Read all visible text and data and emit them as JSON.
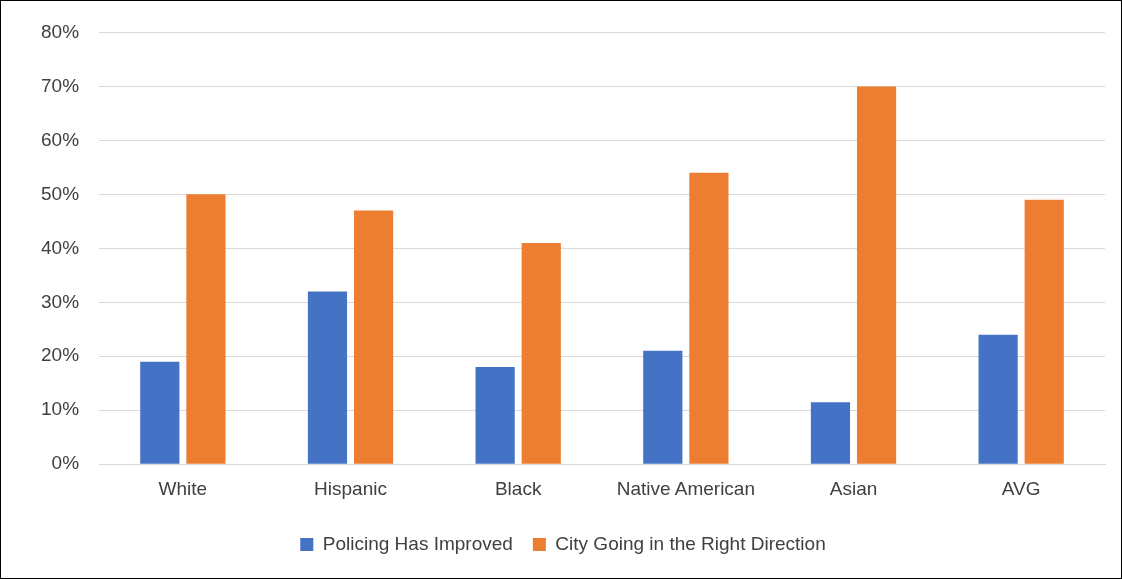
{
  "chart_data": {
    "type": "bar",
    "categories": [
      "White",
      "Hispanic",
      "Black",
      "Native American",
      "Asian",
      "AVG"
    ],
    "series": [
      {
        "name": "Policing Has Improved",
        "color": "#4472c4",
        "values": [
          19,
          32,
          18,
          21,
          11.5,
          24
        ]
      },
      {
        "name": "City Going in the Right Direction",
        "color": "#ed7d31",
        "values": [
          50,
          47,
          41,
          54,
          70,
          49
        ]
      }
    ],
    "ylim": [
      0,
      80
    ],
    "yticks": [
      {
        "value": 0,
        "label": "0%"
      },
      {
        "value": 10,
        "label": "10%"
      },
      {
        "value": 20,
        "label": "20%"
      },
      {
        "value": 30,
        "label": "30%"
      },
      {
        "value": 40,
        "label": "40%"
      },
      {
        "value": 50,
        "label": "50%"
      },
      {
        "value": 60,
        "label": "60%"
      },
      {
        "value": 70,
        "label": "70%"
      },
      {
        "value": 80,
        "label": "80%"
      }
    ],
    "grid": "y",
    "legend": "bottom"
  }
}
